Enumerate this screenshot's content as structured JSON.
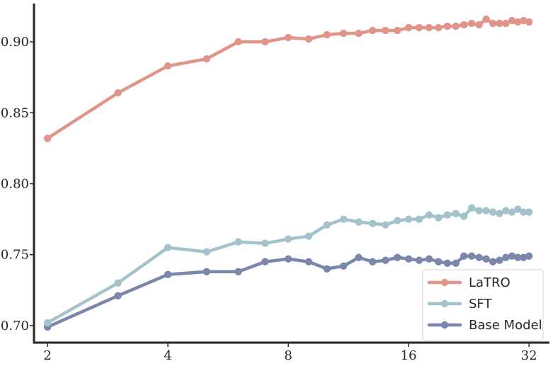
{
  "chart_data": {
    "type": "line",
    "x_scale": "log2",
    "xlim": [
      1.85,
      36
    ],
    "ylim": [
      0.688,
      0.927
    ],
    "x_ticks": [
      2,
      4,
      8,
      16,
      32
    ],
    "x_tick_labels": [
      "2",
      "4",
      "8",
      "16",
      "32"
    ],
    "y_ticks": [
      0.7,
      0.75,
      0.8,
      0.85,
      0.9
    ],
    "y_tick_labels": [
      "0.70",
      "0.75",
      "0.80",
      "0.85",
      "0.90"
    ],
    "grid": false,
    "legend_position": "lower-right",
    "x": [
      2,
      3,
      4,
      5,
      6,
      7,
      8,
      9,
      10,
      11,
      12,
      13,
      14,
      15,
      16,
      17,
      18,
      19,
      20,
      21,
      22,
      23,
      24,
      25,
      26,
      27,
      28,
      29,
      30,
      31,
      32
    ],
    "series": [
      {
        "name": "LaTRO",
        "color": "#e0948a",
        "values": [
          0.832,
          0.864,
          0.883,
          0.888,
          0.9,
          0.9,
          0.903,
          0.902,
          0.905,
          0.906,
          0.906,
          0.908,
          0.908,
          0.908,
          0.91,
          0.91,
          0.91,
          0.91,
          0.911,
          0.911,
          0.912,
          0.913,
          0.912,
          0.916,
          0.913,
          0.913,
          0.913,
          0.915,
          0.914,
          0.915,
          0.914
        ]
      },
      {
        "name": "SFT",
        "color": "#a3c2cc",
        "values": [
          0.702,
          0.73,
          0.755,
          0.752,
          0.759,
          0.758,
          0.761,
          0.763,
          0.771,
          0.775,
          0.773,
          0.772,
          0.771,
          0.774,
          0.775,
          0.775,
          0.778,
          0.776,
          0.778,
          0.779,
          0.777,
          0.783,
          0.781,
          0.781,
          0.78,
          0.779,
          0.781,
          0.78,
          0.782,
          0.78,
          0.78
        ]
      },
      {
        "name": "Base Model",
        "color": "#7a87ab",
        "values": [
          0.699,
          0.721,
          0.736,
          0.738,
          0.738,
          0.745,
          0.747,
          0.745,
          0.74,
          0.742,
          0.748,
          0.745,
          0.746,
          0.748,
          0.747,
          0.746,
          0.747,
          0.745,
          0.744,
          0.744,
          0.749,
          0.749,
          0.748,
          0.747,
          0.745,
          0.746,
          0.748,
          0.749,
          0.748,
          0.748,
          0.749
        ]
      }
    ]
  }
}
